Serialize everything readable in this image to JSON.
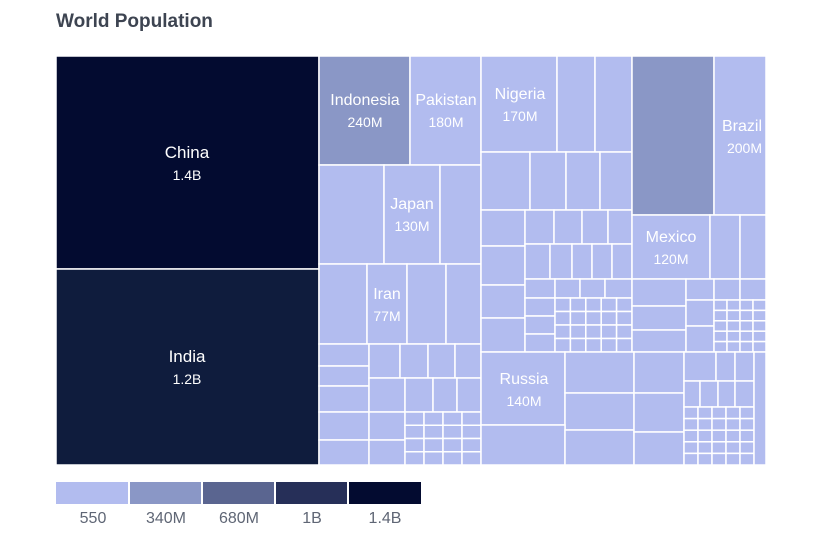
{
  "title": "World Population",
  "chart_data": {
    "type": "treemap",
    "title": "World Population",
    "items": [
      {
        "label": "China",
        "value_label": "1.4B",
        "value": 1400000000
      },
      {
        "label": "India",
        "value_label": "1.2B",
        "value": 1200000000
      },
      {
        "label": "Indonesia",
        "value_label": "240M",
        "value": 240000000
      },
      {
        "label": "Pakistan",
        "value_label": "180M",
        "value": 180000000
      },
      {
        "label": "Japan",
        "value_label": "130M",
        "value": 130000000
      },
      {
        "label": "Iran",
        "value_label": "77M",
        "value": 77000000
      },
      {
        "label": "Nigeria",
        "value_label": "170M",
        "value": 170000000
      },
      {
        "label": "Brazil",
        "value_label": "200M",
        "value": 200000000
      },
      {
        "label": "Mexico",
        "value_label": "120M",
        "value": 120000000
      },
      {
        "label": "Russia",
        "value_label": "140M",
        "value": 140000000
      }
    ],
    "color_scale": {
      "labels": [
        "550",
        "340M",
        "680M",
        "1B",
        "1.4B"
      ],
      "colors": [
        "#b2bcef",
        "#8a97c6",
        "#5a6590",
        "#262f58",
        "#030b30"
      ]
    }
  }
}
